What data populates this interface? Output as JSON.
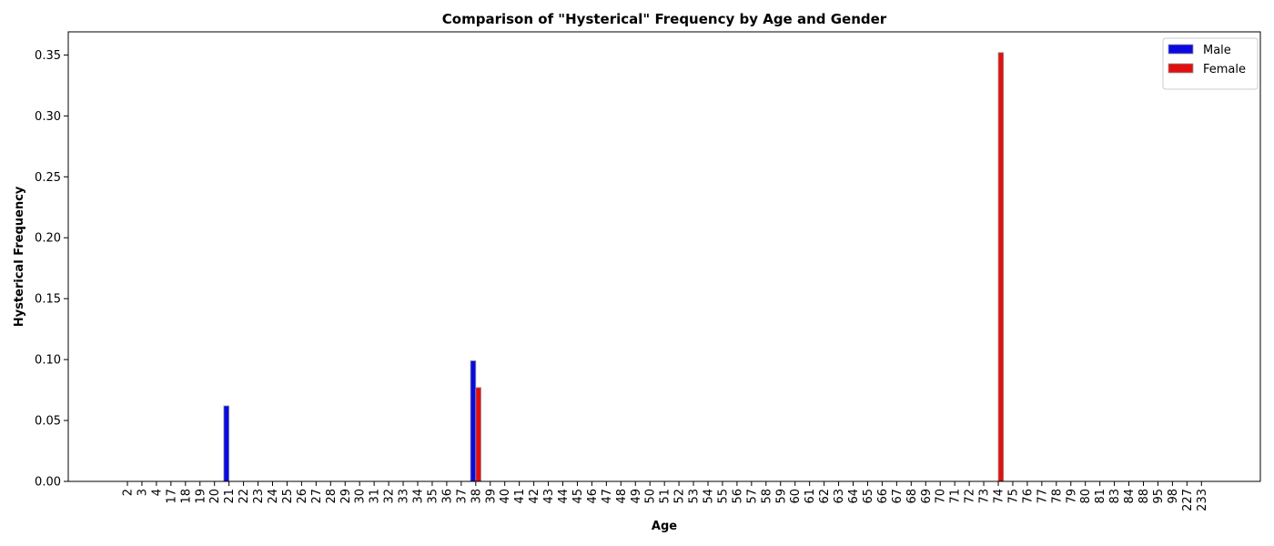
{
  "chart_data": {
    "type": "bar",
    "title": "Comparison of \"Hysterical\" Frequency by Age and Gender",
    "x_label": "Age",
    "y_label": "Hysterical Frequency",
    "categories": [
      2,
      3,
      4,
      17,
      18,
      19,
      20,
      21,
      22,
      23,
      24,
      25,
      26,
      27,
      28,
      29,
      30,
      31,
      32,
      33,
      34,
      35,
      36,
      37,
      38,
      39,
      40,
      41,
      42,
      43,
      44,
      45,
      46,
      47,
      48,
      49,
      50,
      51,
      52,
      53,
      54,
      55,
      56,
      57,
      58,
      59,
      60,
      61,
      62,
      63,
      64,
      65,
      66,
      67,
      68,
      69,
      70,
      71,
      72,
      73,
      74,
      75,
      76,
      77,
      78,
      79,
      80,
      81,
      83,
      84,
      88,
      95,
      98,
      227,
      233
    ],
    "series": [
      {
        "name": "Male",
        "color": "#0a0ae0",
        "values": [
          0,
          0,
          0,
          0,
          0,
          0,
          0,
          0.062,
          0,
          0,
          0,
          0,
          0,
          0,
          0,
          0,
          0,
          0,
          0,
          0,
          0,
          0,
          0,
          0,
          0.099,
          0,
          0,
          0,
          0,
          0,
          0,
          0,
          0,
          0,
          0,
          0,
          0,
          0,
          0,
          0,
          0,
          0,
          0,
          0,
          0,
          0,
          0,
          0,
          0,
          0,
          0,
          0,
          0,
          0,
          0,
          0,
          0,
          0,
          0,
          0,
          0,
          0,
          0,
          0,
          0,
          0,
          0,
          0,
          0,
          0,
          0,
          0,
          0,
          0,
          0
        ]
      },
      {
        "name": "Female",
        "color": "#e01010",
        "values": [
          0,
          0,
          0,
          0,
          0,
          0,
          0,
          0,
          0,
          0,
          0,
          0,
          0,
          0,
          0,
          0,
          0,
          0,
          0,
          0,
          0,
          0,
          0,
          0,
          0.077,
          0,
          0,
          0,
          0,
          0,
          0,
          0,
          0,
          0,
          0,
          0,
          0,
          0,
          0,
          0,
          0,
          0,
          0,
          0,
          0,
          0,
          0,
          0,
          0,
          0,
          0,
          0,
          0,
          0,
          0,
          0,
          0,
          0,
          0,
          0,
          0.352,
          0,
          0,
          0,
          0,
          0,
          0,
          0,
          0,
          0,
          0,
          0,
          0,
          0,
          0
        ]
      }
    ],
    "ylim": [
      0,
      0.369
    ],
    "yticks": [
      {
        "value": 0,
        "label": "0.00"
      },
      {
        "value": 0.05,
        "label": "0.05"
      },
      {
        "value": 0.1,
        "label": "0.10"
      },
      {
        "value": 0.15,
        "label": "0.15"
      },
      {
        "value": 0.2,
        "label": "0.20"
      },
      {
        "value": 0.25,
        "label": "0.25"
      },
      {
        "value": 0.3,
        "label": "0.30"
      },
      {
        "value": 0.35,
        "label": "0.35"
      }
    ],
    "legend": "upper right"
  }
}
